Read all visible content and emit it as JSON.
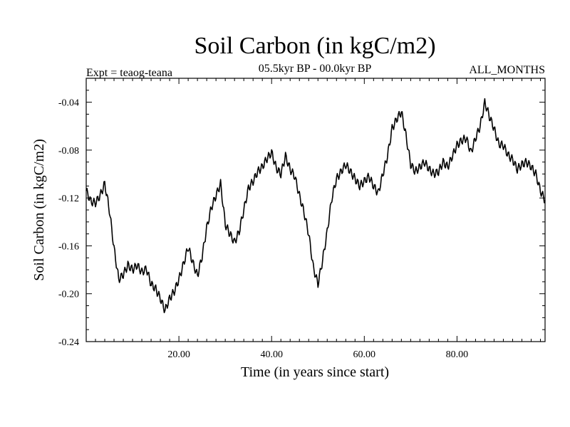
{
  "chart_data": {
    "type": "line",
    "title": "Soil Carbon (in kgC/m2)",
    "subtitle": "05.5kyr BP - 00.0kyr BP",
    "experiment": "Expt = teaog-teana",
    "season": "ALL_MONTHS",
    "xlabel": "Time (in years since start)",
    "ylabel": "Soil Carbon (in kgC/m2)",
    "xlim": [
      0,
      99
    ],
    "ylim": [
      -0.24,
      -0.02
    ],
    "x_ticks": [
      20,
      40,
      60,
      80
    ],
    "x_tick_labels": [
      "20.00",
      "40.00",
      "60.00",
      "80.00"
    ],
    "y_ticks": [
      -0.24,
      -0.2,
      -0.16,
      -0.12,
      -0.08,
      -0.04
    ],
    "y_tick_labels": [
      "-0.24",
      "-0.20",
      "-0.16",
      "-0.12",
      "-0.08",
      "-0.04"
    ],
    "series": [
      {
        "name": "Soil Carbon",
        "x": [
          0,
          1,
          2,
          3,
          4,
          5,
          6,
          7,
          8,
          9,
          10,
          11,
          12,
          13,
          14,
          15,
          16,
          17,
          18,
          19,
          20,
          21,
          22,
          23,
          24,
          25,
          26,
          27,
          28,
          29,
          30,
          31,
          32,
          33,
          34,
          35,
          36,
          37,
          38,
          39,
          40,
          41,
          42,
          43,
          44,
          45,
          46,
          47,
          48,
          49,
          50,
          51,
          52,
          53,
          54,
          55,
          56,
          57,
          58,
          59,
          60,
          61,
          62,
          63,
          64,
          65,
          66,
          67,
          68,
          69,
          70,
          71,
          72,
          73,
          74,
          75,
          76,
          77,
          78,
          79,
          80,
          81,
          82,
          83,
          84,
          85,
          86,
          87,
          88,
          89,
          90,
          91,
          92,
          93,
          94,
          95,
          96,
          97,
          98,
          99
        ],
        "values": [
          -0.114,
          -0.123,
          -0.124,
          -0.118,
          -0.108,
          -0.13,
          -0.162,
          -0.188,
          -0.184,
          -0.176,
          -0.18,
          -0.176,
          -0.182,
          -0.179,
          -0.192,
          -0.196,
          -0.204,
          -0.214,
          -0.204,
          -0.198,
          -0.188,
          -0.175,
          -0.161,
          -0.174,
          -0.185,
          -0.169,
          -0.145,
          -0.128,
          -0.118,
          -0.108,
          -0.142,
          -0.15,
          -0.157,
          -0.148,
          -0.13,
          -0.112,
          -0.106,
          -0.098,
          -0.094,
          -0.087,
          -0.082,
          -0.095,
          -0.1,
          -0.085,
          -0.096,
          -0.102,
          -0.118,
          -0.132,
          -0.15,
          -0.178,
          -0.192,
          -0.172,
          -0.148,
          -0.12,
          -0.104,
          -0.098,
          -0.092,
          -0.098,
          -0.104,
          -0.11,
          -0.106,
          -0.102,
          -0.11,
          -0.116,
          -0.1,
          -0.085,
          -0.062,
          -0.054,
          -0.048,
          -0.068,
          -0.092,
          -0.098,
          -0.094,
          -0.09,
          -0.096,
          -0.1,
          -0.098,
          -0.09,
          -0.094,
          -0.085,
          -0.076,
          -0.072,
          -0.07,
          -0.082,
          -0.07,
          -0.06,
          -0.04,
          -0.052,
          -0.062,
          -0.075,
          -0.076,
          -0.084,
          -0.088,
          -0.096,
          -0.092,
          -0.09,
          -0.094,
          -0.1,
          -0.114,
          -0.122
        ]
      }
    ]
  }
}
